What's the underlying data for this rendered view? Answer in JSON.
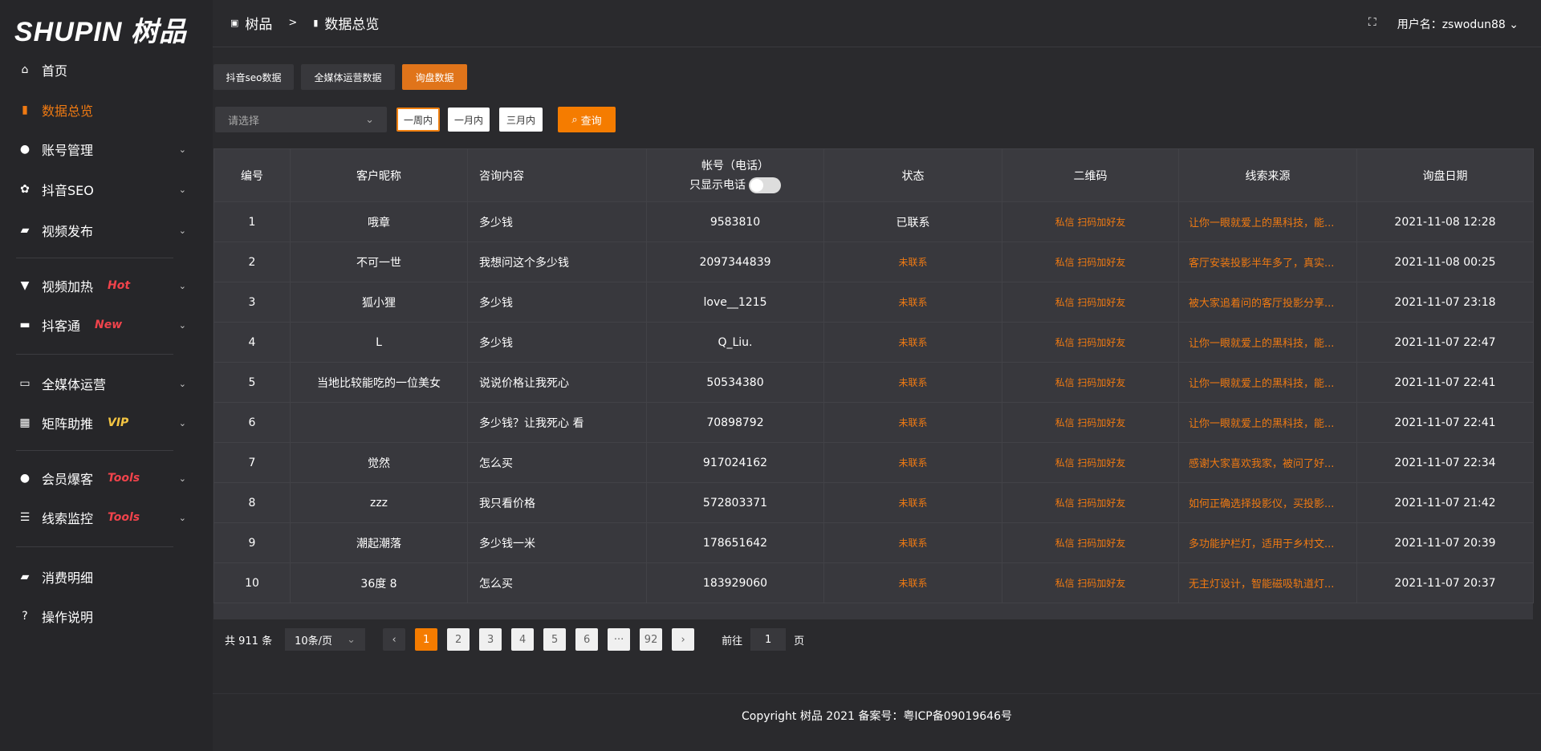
{
  "brand": {
    "logo": "SHUPIN 树品"
  },
  "sidebar": {
    "items": [
      {
        "label": "首页",
        "icon": "home-icon",
        "glyph": "⌂"
      },
      {
        "label": "数据总览",
        "icon": "bar-chart-icon",
        "glyph": "▮",
        "active": true
      },
      {
        "label": "账号管理",
        "icon": "user-icon",
        "glyph": "●"
      },
      {
        "label": "抖音SEO",
        "icon": "gear-icon",
        "glyph": "✿"
      },
      {
        "label": "视频发布",
        "icon": "camera-icon",
        "glyph": "▰"
      },
      {
        "label": "视频加热",
        "icon": "sign-icon",
        "glyph": "▼",
        "badge": "Hot",
        "badge_color": "#f0434b"
      },
      {
        "label": "抖客通",
        "icon": "chat-icon",
        "glyph": "▬",
        "badge": "New",
        "badge_color": "#f0434b"
      },
      {
        "label": "全媒体运营",
        "icon": "monitor-icon",
        "glyph": "▭"
      },
      {
        "label": "矩阵助推",
        "icon": "grid-icon",
        "glyph": "▦",
        "badge": "VIP",
        "badge_color": "#f4c542"
      },
      {
        "label": "会员爆客",
        "icon": "user-icon",
        "glyph": "●",
        "badge": "Tools",
        "badge_color": "#f0434b"
      },
      {
        "label": "线索监控",
        "icon": "sliders-icon",
        "glyph": "☰",
        "badge": "Tools",
        "badge_color": "#f0434b"
      },
      {
        "label": "消费明细",
        "icon": "wallet-icon",
        "glyph": "▰"
      },
      {
        "label": "操作说明",
        "icon": "help-icon",
        "glyph": "?"
      }
    ]
  },
  "header": {
    "crumb1": "树品",
    "sep": ">",
    "crumb2": "数据总览",
    "user_label": "用户名：zswodun88",
    "fullscreen_icon": "fullscreen-icon"
  },
  "tabs": [
    "抖音seo数据",
    "全媒体运营数据",
    "询盘数据"
  ],
  "filters": {
    "select_placeholder": "请选择",
    "ranges": [
      "一周内",
      "一月内",
      "三月内"
    ],
    "query": "查询"
  },
  "table": {
    "headers": [
      "编号",
      "客户昵称",
      "咨询内容",
      "帐号（电话）",
      "状态",
      "二维码",
      "线索来源",
      "询盘日期"
    ],
    "toggle_label": "只显示电话",
    "rows": [
      [
        "1",
        "哦章",
        "多少钱",
        "9583810",
        "已联系",
        "私信 扫码加好友",
        "让你一眼就爱上的黑科技，能...",
        "2021-11-08 12:28"
      ],
      [
        "2",
        "不可一世",
        "我想问这个多少钱",
        "2097344839",
        "未联系",
        "私信 扫码加好友",
        "客厅安装投影半年多了，真实...",
        "2021-11-08 00:25"
      ],
      [
        "3",
        "狐小狸",
        "多少钱",
        "love__1215",
        "未联系",
        "私信 扫码加好友",
        "被大家追着问的客厅投影分享...",
        "2021-11-07 23:18"
      ],
      [
        "4",
        "L",
        "多少钱",
        "Q_Liu.",
        "未联系",
        "私信 扫码加好友",
        "让你一眼就爱上的黑科技，能...",
        "2021-11-07 22:47"
      ],
      [
        "5",
        "当地比较能吃的一位美女",
        "说说价格让我死心",
        "50534380",
        "未联系",
        "私信 扫码加好友",
        "让你一眼就爱上的黑科技，能...",
        "2021-11-07 22:41"
      ],
      [
        "6",
        "",
        "多少钱？让我死心 看",
        "70898792",
        "未联系",
        "私信 扫码加好友",
        "让你一眼就爱上的黑科技，能...",
        "2021-11-07 22:41"
      ],
      [
        "7",
        "觉然",
        "怎么买",
        "917024162",
        "未联系",
        "私信 扫码加好友",
        "感谢大家喜欢我家，被问了好...",
        "2021-11-07 22:34"
      ],
      [
        "8",
        "zzz",
        "我只看价格",
        "572803371",
        "未联系",
        "私信 扫码加好友",
        "如何正确选择投影仪，买投影...",
        "2021-11-07 21:42"
      ],
      [
        "9",
        "潮起潮落",
        "多少钱一米",
        "178651642",
        "未联系",
        "私信 扫码加好友",
        "多功能护栏灯，适用于乡村文...",
        "2021-11-07 20:39"
      ],
      [
        "10",
        "36度 8",
        "怎么买",
        "183929060",
        "未联系",
        "私信 扫码加好友",
        "无主灯设计，智能磁吸轨道灯...",
        "2021-11-07 20:37"
      ]
    ]
  },
  "pagination": {
    "total": "共 911 条",
    "page_size": "10条/页",
    "pages": [
      "1",
      "2",
      "3",
      "4",
      "5",
      "6",
      "···",
      "92"
    ],
    "current": "1",
    "goto_label": "前往",
    "goto_value": "1",
    "page_suffix": "页"
  },
  "footer": {
    "copyright": "Copyright 树品 2021 备案号：粤ICP备09019646号"
  },
  "colors": {
    "accent": "#f57c00",
    "sidebar_bg": "#262629",
    "main_bg": "#2a2a2d"
  }
}
